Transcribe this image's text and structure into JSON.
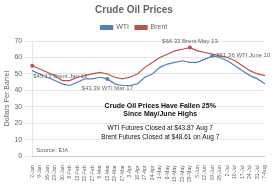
{
  "chart_data": {
    "type": "line",
    "title": "Crude Oil Prices",
    "y_label": "Dollars Per Barrel",
    "categories": [
      "2-Jan",
      "9-Jan",
      "16-Jan",
      "23-Jan",
      "30-Jan",
      "6-Feb",
      "13-Feb",
      "20-Feb",
      "27-Feb",
      "6-Mar",
      "13-Mar",
      "20-Mar",
      "27-Mar",
      "3-Apr",
      "10-Apr",
      "17-Apr",
      "24-Apr",
      "1-May",
      "8-May",
      "15-May",
      "22-May",
      "29-May",
      "5-Jun",
      "12-Jun",
      "19-Jun",
      "26-Jun",
      "2-Jul",
      "10-Jul",
      "17-Jul",
      "24-Jul",
      "31-Jul",
      "7-Aug"
    ],
    "series": [
      {
        "name": "WTI",
        "color": "#4f81bd",
        "values": [
          52,
          50,
          48,
          46,
          44,
          43,
          45,
          47,
          47,
          48,
          47,
          44,
          43,
          43,
          44,
          48,
          50,
          54,
          56,
          57,
          58,
          57,
          57,
          59,
          61,
          60,
          58,
          55,
          52,
          49,
          47,
          44
        ]
      },
      {
        "name": "Brent",
        "color": "#c0504d",
        "values": [
          55,
          53,
          51,
          49,
          46,
          46,
          48,
          49,
          50,
          51,
          50,
          48,
          47,
          48,
          50,
          54,
          57,
          60,
          62,
          64,
          65,
          66,
          64,
          63,
          62,
          61,
          60,
          58,
          55,
          52,
          50,
          49
        ]
      }
    ],
    "ylim": [
      0,
      70
    ],
    "yticks": [
      0,
      10,
      20,
      30,
      40,
      50,
      60,
      70
    ],
    "grid": true,
    "legend": "top",
    "annotations": [
      {
        "text": "$45.13 Brent Jan 13",
        "series": "Brent",
        "x": "2-Jan"
      },
      {
        "text": "$43.39 WTI Mar 17",
        "series": "WTI",
        "x": "13-Mar"
      },
      {
        "text": "$66.33 Brent May 13",
        "series": "Brent",
        "x": "29-May"
      },
      {
        "text": "$61.36 WTI June 10",
        "series": "WTI",
        "x": "19-Jun"
      }
    ],
    "text_box": [
      "Crude Oil Prices Have Fallen 25%",
      "Since May/June Highs",
      "WTI Futures Closed at $43.87 Aug 7",
      "Brent Futures Closed at $48.61 on Aug 7"
    ],
    "source": "Source: EIA"
  }
}
